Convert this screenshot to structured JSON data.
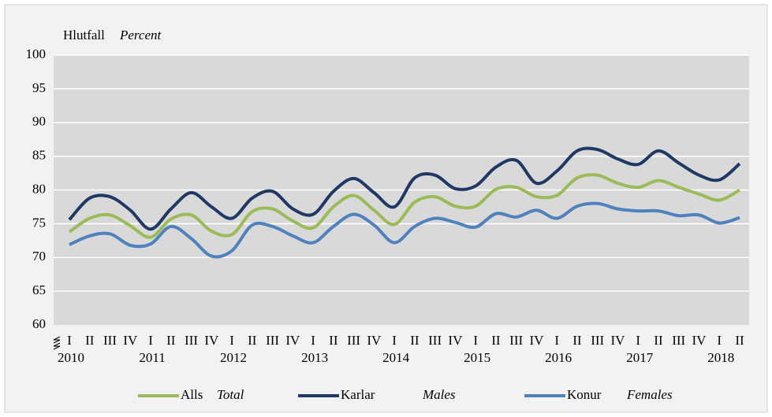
{
  "chart_data": {
    "type": "line",
    "ylabel": "Hlutfall",
    "ylabel_en": "Percent",
    "categories": [
      "I",
      "II",
      "III",
      "IV",
      "I",
      "II",
      "III",
      "IV",
      "I",
      "II",
      "III",
      "IV",
      "I",
      "II",
      "III",
      "IV",
      "I",
      "II",
      "III",
      "IV",
      "I",
      "II",
      "III",
      "IV",
      "I",
      "II",
      "III",
      "IV",
      "I",
      "II",
      "III",
      "IV",
      "I",
      "II"
    ],
    "years": [
      "2010",
      "2011",
      "2012",
      "2013",
      "2014",
      "2015",
      "2016",
      "2017",
      "2018"
    ],
    "ylim": [
      60,
      100
    ],
    "yticks": [
      60,
      65,
      70,
      75,
      80,
      85,
      90,
      95,
      100
    ],
    "grid": true,
    "smooth": true,
    "legend": "bottom",
    "series": [
      {
        "name": "Alls",
        "name_en": "Total",
        "color": "#9bbb59",
        "values": [
          73.8,
          75.8,
          76.3,
          74.7,
          73.0,
          75.7,
          76.3,
          73.9,
          73.4,
          76.8,
          77.2,
          75.4,
          74.4,
          77.5,
          79.2,
          77.0,
          74.9,
          78.2,
          79.0,
          77.6,
          77.6,
          80.1,
          80.4,
          79.0,
          79.2,
          81.8,
          82.2,
          81.0,
          80.4,
          81.4,
          80.4,
          79.4,
          78.5,
          80.0
        ]
      },
      {
        "name": "Karlar",
        "name_en": "Males",
        "color": "#1f3864",
        "values": [
          75.6,
          78.8,
          79.0,
          77.0,
          74.2,
          77.2,
          79.6,
          77.5,
          75.8,
          78.8,
          79.8,
          77.2,
          76.4,
          79.8,
          81.7,
          79.6,
          77.5,
          81.8,
          82.2,
          80.2,
          80.6,
          83.4,
          84.4,
          81.0,
          82.8,
          85.8,
          86.0,
          84.6,
          83.8,
          85.8,
          84.0,
          82.2,
          81.5,
          83.9
        ]
      },
      {
        "name": "Konur",
        "name_en": "Females",
        "color": "#4f81bd",
        "values": [
          71.9,
          73.2,
          73.5,
          71.8,
          72.0,
          74.6,
          72.8,
          70.2,
          71.0,
          74.8,
          74.6,
          73.2,
          72.2,
          74.6,
          76.4,
          74.8,
          72.2,
          74.6,
          75.8,
          75.2,
          74.5,
          76.5,
          76.0,
          77.0,
          75.8,
          77.6,
          78.0,
          77.2,
          76.9,
          76.9,
          76.2,
          76.3,
          75.1,
          75.9
        ]
      }
    ]
  }
}
